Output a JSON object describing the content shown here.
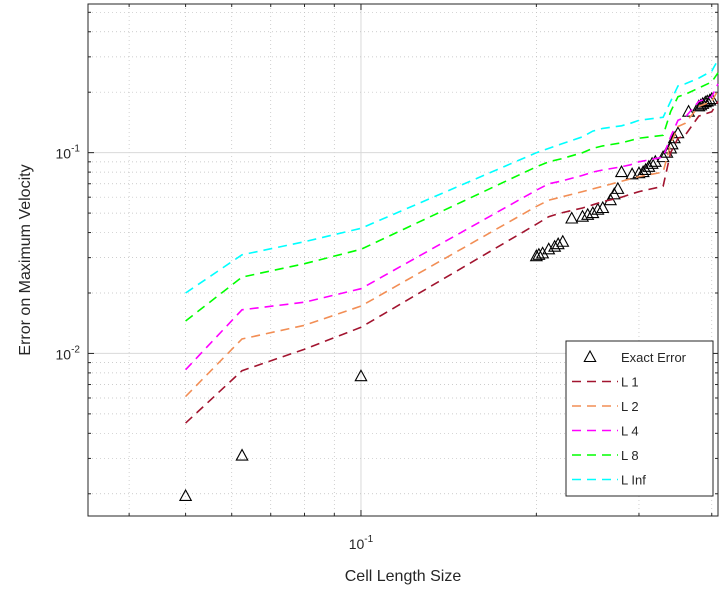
{
  "chart_data": {
    "type": "line",
    "title": "",
    "xlabel": "Cell Length Size",
    "ylabel": "Error on Maximum Velocity",
    "xscale": "log",
    "yscale": "log",
    "xlim": [
      0.034,
      0.41
    ],
    "ylim": [
      0.00155,
      0.55
    ],
    "grid": true,
    "legend_position": "bottom-right",
    "x_ticks": [
      {
        "value": 0.1,
        "base": "10",
        "exp": "-1"
      }
    ],
    "y_ticks": [
      {
        "value": 0.01,
        "base": "10",
        "exp": "-2"
      },
      {
        "value": 0.1,
        "base": "10",
        "exp": "-1"
      }
    ],
    "series": [
      {
        "name": "Exact Error",
        "style": "markers",
        "marker": "triangle",
        "color": "#000000",
        "x": [
          0.05,
          0.0625,
          0.1,
          0.2,
          0.202,
          0.205,
          0.21,
          0.215,
          0.218,
          0.222,
          0.23,
          0.24,
          0.245,
          0.25,
          0.255,
          0.26,
          0.268,
          0.272,
          0.276,
          0.28,
          0.292,
          0.3,
          0.305,
          0.308,
          0.312,
          0.316,
          0.32,
          0.33,
          0.335,
          0.34,
          0.342,
          0.345,
          0.35,
          0.365,
          0.38,
          0.383,
          0.386,
          0.39,
          0.393,
          0.397,
          0.4
        ],
        "y": [
          0.00195,
          0.0031,
          0.0077,
          0.0305,
          0.031,
          0.0315,
          0.033,
          0.034,
          0.035,
          0.036,
          0.047,
          0.048,
          0.049,
          0.05,
          0.052,
          0.053,
          0.058,
          0.062,
          0.066,
          0.08,
          0.078,
          0.079,
          0.08,
          0.082,
          0.085,
          0.088,
          0.09,
          0.095,
          0.1,
          0.105,
          0.11,
          0.118,
          0.125,
          0.16,
          0.17,
          0.172,
          0.175,
          0.178,
          0.18,
          0.182,
          0.185
        ]
      },
      {
        "name": "L 1",
        "style": "dashed",
        "color": "#a2142f",
        "x": [
          0.05,
          0.0625,
          0.08,
          0.1,
          0.2,
          0.21,
          0.22,
          0.24,
          0.25,
          0.26,
          0.28,
          0.29,
          0.3,
          0.33,
          0.34,
          0.35,
          0.36,
          0.38,
          0.4,
          0.41
        ],
        "y": [
          0.0045,
          0.0082,
          0.0105,
          0.0135,
          0.044,
          0.048,
          0.05,
          0.053,
          0.055,
          0.057,
          0.06,
          0.062,
          0.064,
          0.068,
          0.1,
          0.118,
          0.122,
          0.152,
          0.16,
          0.18
        ]
      },
      {
        "name": "L 2",
        "style": "dashed",
        "color": "#f28e55",
        "x": [
          0.05,
          0.0625,
          0.08,
          0.1,
          0.2,
          0.21,
          0.22,
          0.24,
          0.25,
          0.26,
          0.28,
          0.29,
          0.3,
          0.33,
          0.34,
          0.35,
          0.36,
          0.38,
          0.4,
          0.41
        ],
        "y": [
          0.0061,
          0.0118,
          0.0138,
          0.0172,
          0.054,
          0.058,
          0.06,
          0.064,
          0.066,
          0.068,
          0.072,
          0.074,
          0.076,
          0.08,
          0.11,
          0.135,
          0.14,
          0.17,
          0.18,
          0.205
        ]
      },
      {
        "name": "L 4",
        "style": "dashed",
        "color": "#ff00ff",
        "x": [
          0.05,
          0.0625,
          0.08,
          0.1,
          0.2,
          0.21,
          0.22,
          0.24,
          0.25,
          0.26,
          0.28,
          0.29,
          0.3,
          0.33,
          0.34,
          0.35,
          0.36,
          0.38,
          0.4,
          0.41
        ],
        "y": [
          0.0083,
          0.0165,
          0.018,
          0.021,
          0.065,
          0.07,
          0.072,
          0.077,
          0.08,
          0.082,
          0.085,
          0.087,
          0.09,
          0.095,
          0.12,
          0.145,
          0.15,
          0.18,
          0.19,
          0.22
        ]
      },
      {
        "name": "L 8",
        "style": "dashed",
        "color": "#00ff00",
        "x": [
          0.05,
          0.0625,
          0.08,
          0.1,
          0.2,
          0.21,
          0.22,
          0.24,
          0.25,
          0.26,
          0.28,
          0.29,
          0.3,
          0.33,
          0.34,
          0.35,
          0.36,
          0.38,
          0.4,
          0.41
        ],
        "y": [
          0.0145,
          0.024,
          0.028,
          0.033,
          0.085,
          0.09,
          0.093,
          0.1,
          0.105,
          0.108,
          0.112,
          0.115,
          0.118,
          0.122,
          0.16,
          0.19,
          0.195,
          0.21,
          0.225,
          0.25
        ]
      },
      {
        "name": "L Inf",
        "style": "dashed",
        "color": "#00ffff",
        "x": [
          0.05,
          0.0625,
          0.08,
          0.1,
          0.2,
          0.21,
          0.22,
          0.24,
          0.25,
          0.26,
          0.28,
          0.29,
          0.3,
          0.33,
          0.34,
          0.35,
          0.36,
          0.38,
          0.4,
          0.41
        ],
        "y": [
          0.02,
          0.031,
          0.036,
          0.042,
          0.1,
          0.105,
          0.11,
          0.12,
          0.128,
          0.132,
          0.136,
          0.14,
          0.145,
          0.15,
          0.18,
          0.215,
          0.22,
          0.235,
          0.255,
          0.29
        ]
      }
    ]
  }
}
